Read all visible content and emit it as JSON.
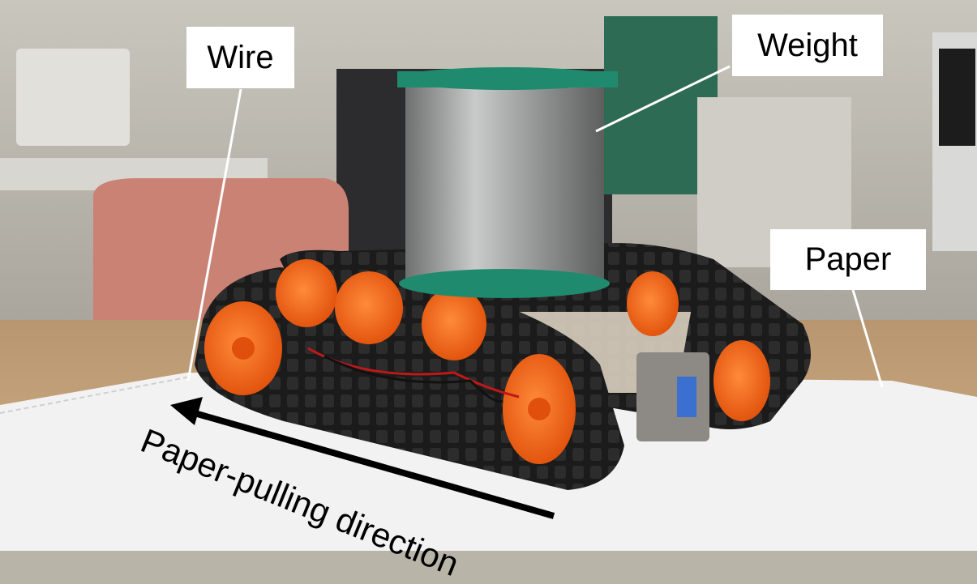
{
  "labels": {
    "wire": "Wire",
    "weight": "Weight",
    "paper": "Paper",
    "direction": "Paper-pulling direction"
  },
  "colors": {
    "track": "#1e1e1e",
    "wheel": "#ff6a14",
    "spool_rim": "#1f8a6e",
    "spool_wire": "#9a9c9c",
    "paper": "#f2f2f2",
    "table": "#c9a57d"
  }
}
